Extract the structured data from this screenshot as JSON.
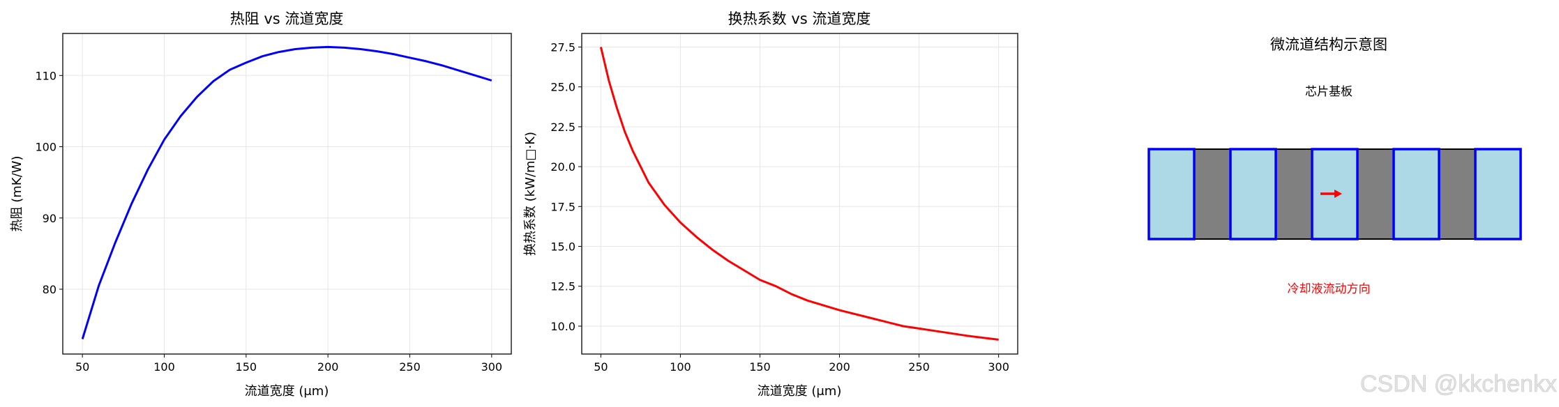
{
  "chart_data": [
    {
      "type": "line",
      "title": "热阻 vs 流道宽度",
      "xlabel": "流道宽度 (μm)",
      "ylabel": "热阻 (mK/W)",
      "xlim": [
        38,
        312
      ],
      "ylim": [
        70.9,
        115.9
      ],
      "xticks": [
        50,
        100,
        150,
        200,
        250,
        300
      ],
      "yticks": [
        80,
        90,
        100,
        110
      ],
      "grid": true,
      "color": "#0000ff",
      "x": [
        50,
        60,
        70,
        80,
        90,
        100,
        110,
        120,
        130,
        140,
        150,
        160,
        170,
        180,
        190,
        200,
        210,
        220,
        230,
        240,
        250,
        260,
        270,
        280,
        290,
        300
      ],
      "y": [
        73,
        80.5,
        86.5,
        92,
        96.8,
        101,
        104.3,
        107,
        109.2,
        110.8,
        111.8,
        112.7,
        113.3,
        113.7,
        113.9,
        114,
        113.9,
        113.7,
        113.4,
        113,
        112.5,
        112,
        111.4,
        110.7,
        110,
        109.3
      ]
    },
    {
      "type": "line",
      "title": "换热系数 vs 流道宽度",
      "xlabel": "流道宽度 (μm)",
      "ylabel": "换热系数 (kW/m□·K)",
      "xlim": [
        38,
        312
      ],
      "ylim": [
        8.25,
        28.35
      ],
      "xticks": [
        50,
        100,
        150,
        200,
        250,
        300
      ],
      "yticks": [
        "10.0",
        "12.5",
        "15.0",
        "17.5",
        "20.0",
        "22.5",
        "25.0",
        "27.5"
      ],
      "grid": true,
      "color": "#ff0000",
      "x": [
        50,
        55,
        60,
        65,
        70,
        80,
        90,
        100,
        110,
        120,
        130,
        140,
        150,
        160,
        170,
        180,
        190,
        200,
        220,
        240,
        250,
        260,
        280,
        300
      ],
      "y": [
        27.5,
        25.4,
        23.7,
        22.2,
        21.0,
        19.0,
        17.6,
        16.5,
        15.6,
        14.8,
        14.1,
        13.5,
        12.9,
        12.5,
        12.0,
        11.6,
        11.3,
        11.0,
        10.5,
        10.0,
        9.85,
        9.7,
        9.4,
        9.15
      ]
    }
  ],
  "diagram": {
    "title": "微流道结构示意图",
    "substrate_label": "芯片基板",
    "flow_label": "冷却液流动方向",
    "channel_count": 5,
    "channel_fill": "#add8e6",
    "channel_edge": "#0000ff",
    "wall_fill": "#808080",
    "arrow_color": "#ff0000",
    "flow_label_color": "#ff0000"
  },
  "watermark": "CSDN @kkchenkx"
}
